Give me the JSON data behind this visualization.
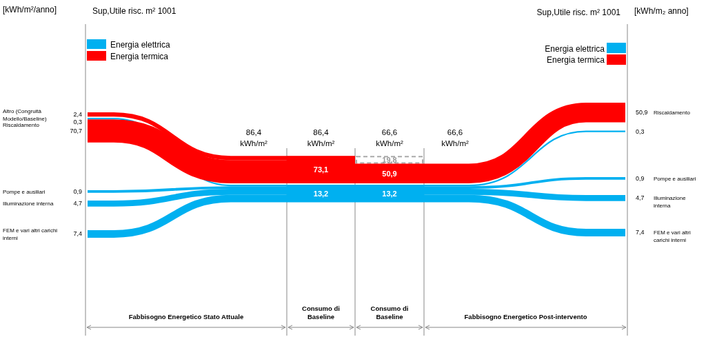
{
  "chart_data": {
    "type": "other",
    "categories": [
      "Altro (Congruità Modello/Baseline)",
      "Riscaldamento",
      "Pompe e ausiliari",
      "Illuminazione interna",
      "FEM e vari altri carichi interni",
      null,
      "Riscaldamento",
      "Pompe e ausiliari",
      "Illuminazione interna",
      "FEM e vari altri carichi interni"
    ],
    "series": [
      {
        "name": "Energia elettrica",
        "color": "#00b0f0",
        "values": [
          null,
          0.3,
          0.9,
          4.7,
          7.4,
          null,
          0.3,
          0.9,
          4.7,
          7.4
        ],
        "value_labels": [
          null,
          "0,3",
          "0,9",
          "4,7",
          "7,4",
          null,
          "0,3",
          "0,9",
          "4,7",
          "7,4"
        ]
      },
      {
        "name": "Energia termica",
        "color": "#ff0000",
        "values": [
          2.4,
          70.7,
          null,
          null,
          null,
          null,
          50.9,
          null,
          null,
          null
        ],
        "value_labels": [
          "2,4",
          "70,7",
          null,
          null,
          null,
          null,
          "50,9",
          null,
          null,
          null
        ]
      }
    ],
    "legend": "top",
    "annotations": [
      "[kWh/m²/anno]",
      "Sup,Utile risc. m² 1001",
      "Sup,Utile risc. m² 1001",
      "[kWh/m₂ anno]",
      "86,4 kWh/m²",
      "86,4 kWh/m²",
      "66,6 kWh/m²",
      "66,6 kWh/m²",
      "73,1",
      "13,2",
      "19,8",
      "50,9",
      "13,2",
      "Fabbisogno Energetico Stato Attuale",
      "Consumo di Baseline",
      "Consumo di Baseline",
      "Fabbisogno Energetico Post-intervento"
    ]
  }
}
